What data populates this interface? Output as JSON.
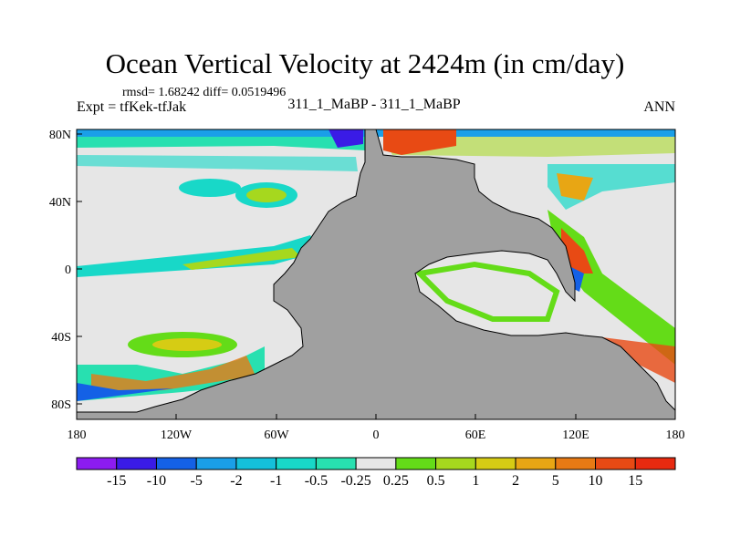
{
  "title": "Ocean Vertical Velocity at 2424m (in cm/day)",
  "stats_line": "rmsd= 1.68242 diff= 0.0519496",
  "expt_line": "Expt = tfKek-tfJak",
  "cases_line": "311_1_MaBP - 311_1_MaBP",
  "season": "ANN",
  "lat_labels": [
    "80N",
    "40N",
    "0",
    "40S",
    "80S"
  ],
  "lon_labels": [
    "180",
    "120W",
    "60W",
    "0",
    "60E",
    "120E",
    "180"
  ],
  "colorbar": {
    "labels": [
      "-15",
      "-10",
      "-5",
      "-2",
      "-1",
      "-0.5",
      "-0.25",
      "0.25",
      "0.5",
      "1",
      "2",
      "5",
      "10",
      "15"
    ],
    "colors": [
      "#8c1cf0",
      "#3a1be6",
      "#1461e6",
      "#1a9fe8",
      "#14c0da",
      "#18d8c8",
      "#28e0b0",
      "#e6e6e6",
      "#64dc18",
      "#a6d81e",
      "#d6cc14",
      "#e8a614",
      "#e87a14",
      "#e84a14",
      "#e82a10"
    ]
  },
  "colors": {
    "land": "#a0a0a0",
    "neutral": "#e6e6e6",
    "frame": "#000000"
  }
}
